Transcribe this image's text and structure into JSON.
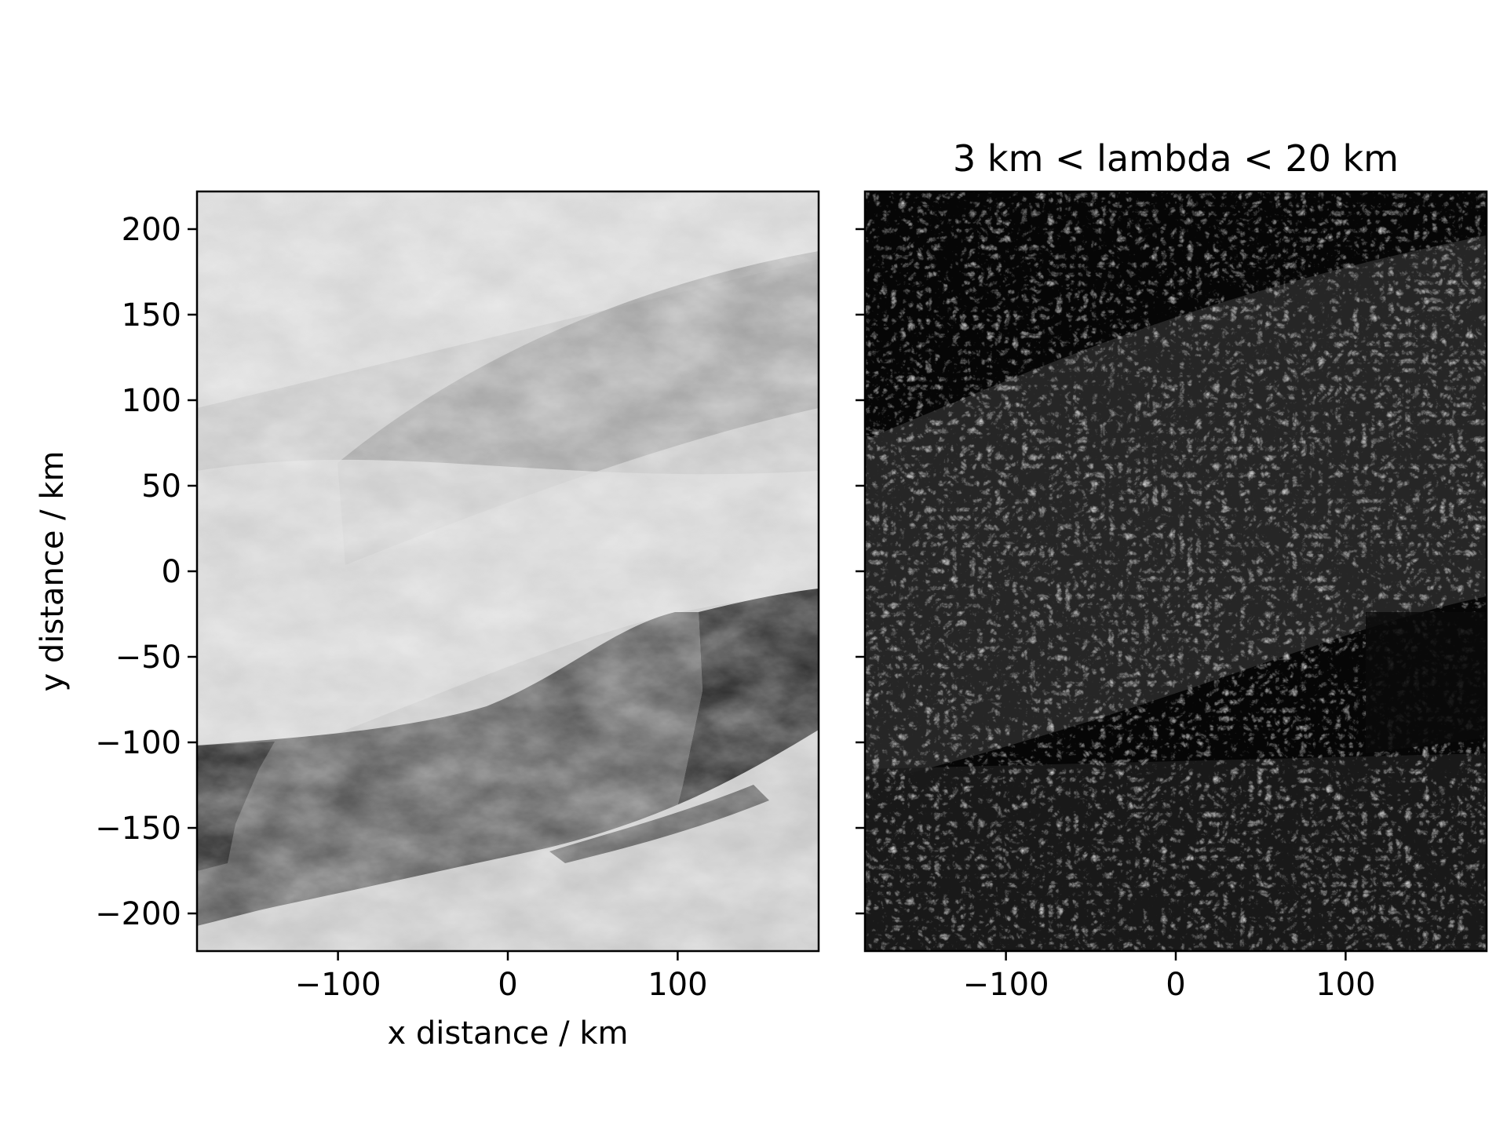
{
  "chart_data": [
    {
      "type": "heatmap",
      "title": "",
      "colormap": "grayscale",
      "xlabel": "x distance / km",
      "ylabel": "y distance / km",
      "xlim": [
        -183,
        183
      ],
      "ylim": [
        -222,
        222
      ],
      "xticks": [
        {
          "value": -100,
          "label": "−100"
        },
        {
          "value": 0,
          "label": "0"
        },
        {
          "value": 100,
          "label": "100"
        }
      ],
      "yticks": [
        {
          "value": 200,
          "label": "200"
        },
        {
          "value": 150,
          "label": "150"
        },
        {
          "value": 100,
          "label": "100"
        },
        {
          "value": 50,
          "label": "50"
        },
        {
          "value": 0,
          "label": "0"
        },
        {
          "value": -50,
          "label": "−50"
        },
        {
          "value": -100,
          "label": "−100"
        },
        {
          "value": -150,
          "label": "−150"
        },
        {
          "value": -200,
          "label": "−200"
        }
      ]
    },
    {
      "type": "heatmap",
      "title": "3 km < lambda < 20 km",
      "colormap": "grayscale",
      "xlabel": "",
      "ylabel": "",
      "xlim": [
        -183,
        183
      ],
      "ylim": [
        -222,
        222
      ],
      "shared_y": true,
      "xticks": [
        {
          "value": -100,
          "label": "−100"
        },
        {
          "value": 0,
          "label": "0"
        },
        {
          "value": 100,
          "label": "100"
        }
      ]
    }
  ]
}
